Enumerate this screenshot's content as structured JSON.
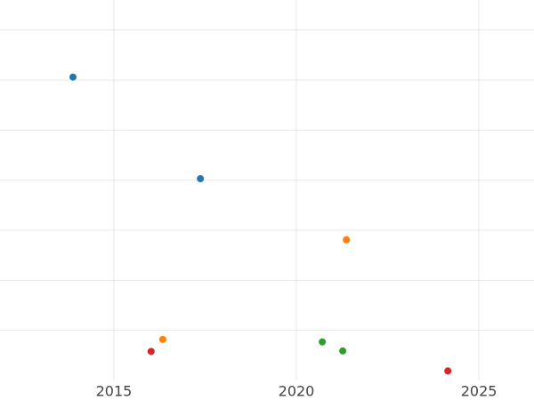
{
  "chart_data": {
    "type": "scatter",
    "xlim": [
      2011.88,
      2026.51
    ],
    "xticks": [
      2015,
      2020,
      2025
    ],
    "ylim": [
      -1,
      6.6
    ],
    "ygrid": [
      0,
      1,
      2,
      3,
      4,
      5,
      6
    ],
    "grid": true,
    "series": [
      {
        "color": "#1f77b4",
        "x": [
          2013.88,
          2017.37
        ],
        "values": [
          5.06,
          3.03
        ]
      },
      {
        "color": "#ff7f0e",
        "x": [
          2021.37,
          2016.34
        ],
        "values": [
          1.81,
          -0.18
        ]
      },
      {
        "color": "#2ca02c",
        "x": [
          2020.71,
          2021.27
        ],
        "values": [
          -0.23,
          -0.41
        ]
      },
      {
        "color": "#d62728",
        "x": [
          2016.02,
          2024.15
        ],
        "values": [
          -0.42,
          -0.81
        ]
      }
    ]
  }
}
